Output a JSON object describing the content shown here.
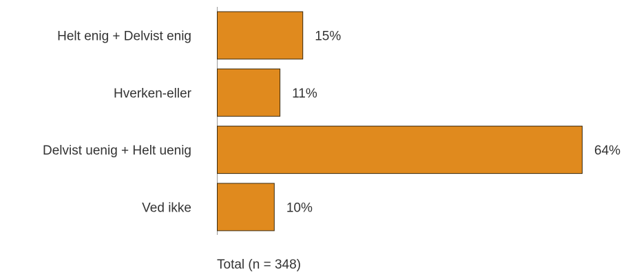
{
  "chart_data": {
    "type": "bar",
    "orientation": "horizontal",
    "categories": [
      "Helt enig + Delvist enig",
      "Hverken-eller",
      "Delvist uenig + Helt uenig",
      "Ved ikke"
    ],
    "values": [
      15,
      11,
      64,
      10
    ],
    "value_labels": [
      "15%",
      "11%",
      "64%",
      "10%"
    ],
    "unit": "%",
    "xlim": [
      0,
      64
    ],
    "footer": "Total (n = 348)",
    "bar_color": "#E08A1E",
    "grid": false,
    "legend": "none"
  }
}
